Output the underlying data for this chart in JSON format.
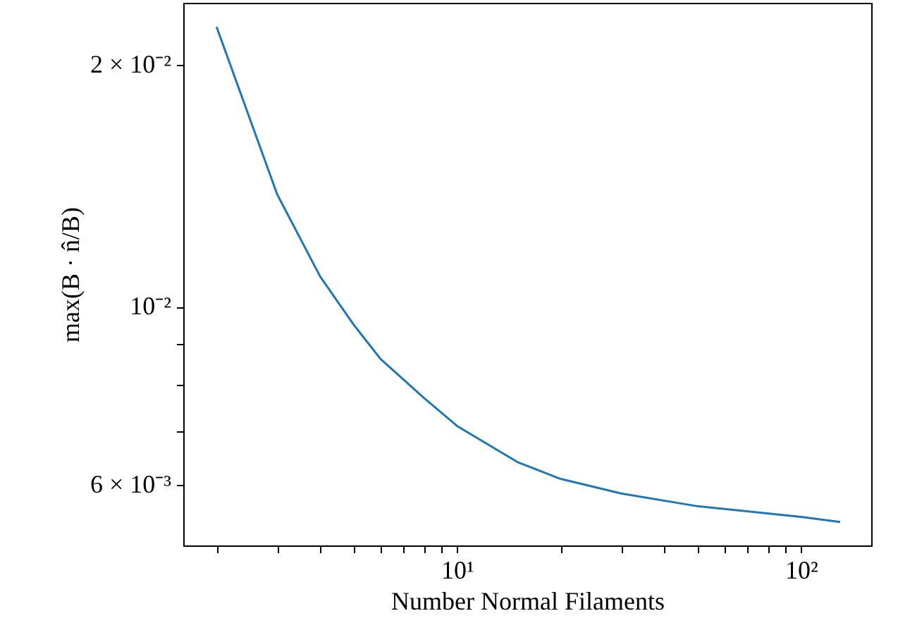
{
  "chart_data": {
    "type": "line",
    "xlabel": "Number Normal Filaments",
    "ylabel": "max(B · n̂/B)",
    "log": "xy",
    "grid": false,
    "x": [
      2,
      3,
      4,
      5,
      6,
      8,
      10,
      15,
      20,
      30,
      50,
      100,
      130
    ],
    "series": [
      {
        "color": "#1f77b4",
        "values": [
          0.0223,
          0.0138,
          0.0109,
          0.0095,
          0.0086,
          0.0077,
          0.0071,
          0.0064,
          0.0061,
          0.00585,
          0.00564,
          0.00547,
          0.00539
        ]
      }
    ],
    "xlim": [
      1.6,
      160
    ],
    "ylim": [
      0.00504,
      0.0239
    ],
    "xticks": [
      {
        "value": 2,
        "label": null
      },
      {
        "value": 3,
        "label": null
      },
      {
        "value": 4,
        "label": null
      },
      {
        "value": 5,
        "label": null
      },
      {
        "value": 6,
        "label": null
      },
      {
        "value": 7,
        "label": null
      },
      {
        "value": 8,
        "label": null
      },
      {
        "value": 9,
        "label": null
      },
      {
        "value": 10,
        "label": "10¹"
      },
      {
        "value": 20,
        "label": null
      },
      {
        "value": 30,
        "label": null
      },
      {
        "value": 40,
        "label": null
      },
      {
        "value": 50,
        "label": null
      },
      {
        "value": 60,
        "label": null
      },
      {
        "value": 70,
        "label": null
      },
      {
        "value": 80,
        "label": null
      },
      {
        "value": 90,
        "label": null
      },
      {
        "value": 100,
        "label": "10²"
      }
    ],
    "yticks": [
      {
        "value": 0.006,
        "label": "6 × 10⁻³"
      },
      {
        "value": 0.007,
        "label": null
      },
      {
        "value": 0.008,
        "label": null
      },
      {
        "value": 0.009,
        "label": null
      },
      {
        "value": 0.01,
        "label": "10⁻²"
      },
      {
        "value": 0.02,
        "label": "2 × 10⁻²"
      }
    ]
  }
}
